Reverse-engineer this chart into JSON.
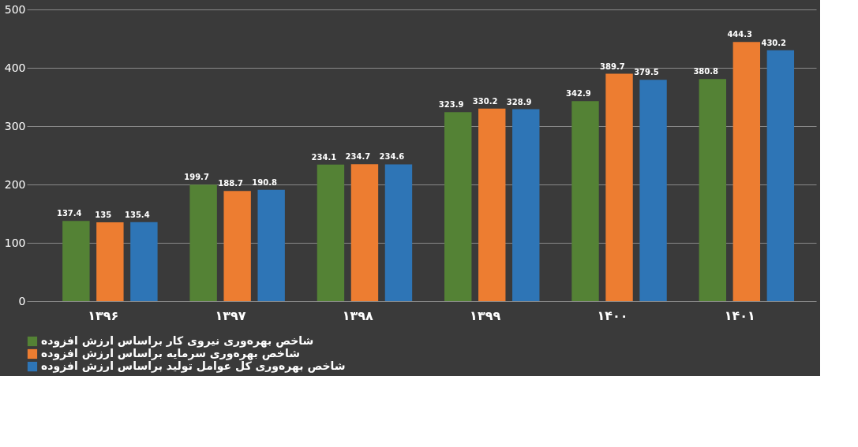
{
  "chart_data": {
    "type": "bar",
    "categories": [
      "۱۳۹۶",
      "۱۳۹۷",
      "۱۳۹۸",
      "۱۳۹۹",
      "۱۴۰۰",
      "۱۴۰۱"
    ],
    "series": [
      {
        "name": "شاخص بهره‌وری نیروی کار براساس ارزش افزوده",
        "color": "#548235",
        "values": [
          137.4,
          199.7,
          234.1,
          323.9,
          342.9,
          380.8
        ]
      },
      {
        "name": "شاخص بهره‌وری سرمایه براساس ارزش افزوده",
        "color": "#ed7d31",
        "values": [
          135,
          188.7,
          234.7,
          330.2,
          389.7,
          444.3
        ]
      },
      {
        "name": "شاخص بهره‌وری کل عوامل تولید براساس ارزش افزوده",
        "color": "#2e75b6",
        "values": [
          135.4,
          190.8,
          234.6,
          328.9,
          379.5,
          430.2
        ]
      }
    ],
    "ylim": [
      0,
      500
    ],
    "yticks": [
      0,
      100,
      200,
      300,
      400,
      500
    ],
    "grid": "y",
    "legend": "bottom",
    "data_labels": true
  }
}
